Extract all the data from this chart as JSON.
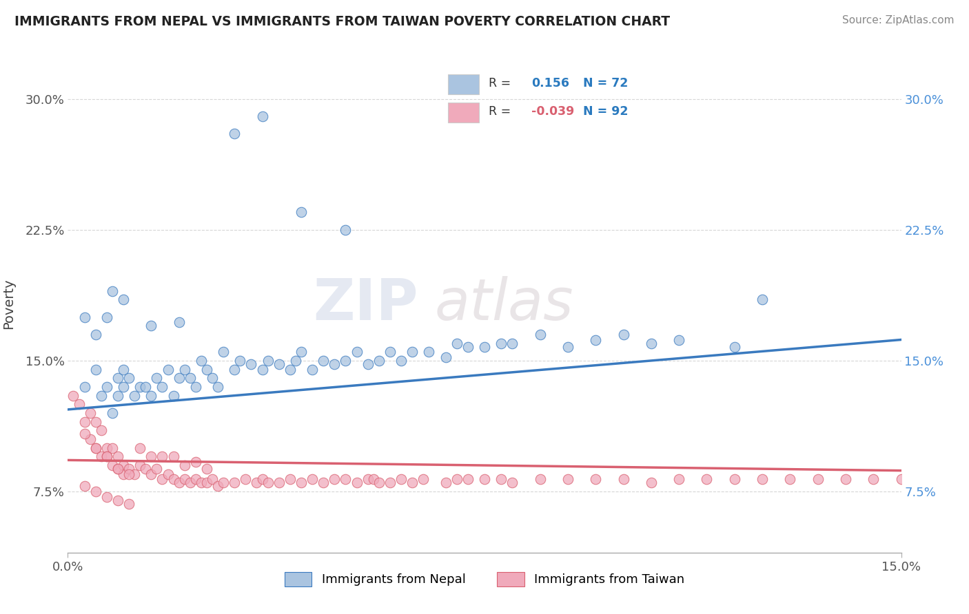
{
  "title": "IMMIGRANTS FROM NEPAL VS IMMIGRANTS FROM TAIWAN POVERTY CORRELATION CHART",
  "source": "Source: ZipAtlas.com",
  "ylabel": "Poverty",
  "x_range": [
    0.0,
    0.15
  ],
  "y_range": [
    0.04,
    0.325
  ],
  "legend_nepal_r": "0.156",
  "legend_nepal_n": "72",
  "legend_taiwan_r": "-0.039",
  "legend_taiwan_n": "92",
  "nepal_color": "#aac4e0",
  "taiwan_color": "#f0aabb",
  "nepal_line_color": "#3a7abf",
  "taiwan_line_color": "#d96070",
  "nepal_line_y0": 0.122,
  "nepal_line_y1": 0.162,
  "taiwan_line_y0": 0.093,
  "taiwan_line_y1": 0.087,
  "y_ticks": [
    0.075,
    0.15,
    0.225,
    0.3
  ],
  "y_tick_labels_left": [
    "7.5%",
    "15.0%",
    "22.5%",
    "30.0%"
  ],
  "y_tick_labels_right": [
    "7.5%",
    "15.0%",
    "22.5%",
    "30.0%"
  ],
  "x_ticks": [
    0.0,
    0.15
  ],
  "x_tick_labels": [
    "0.0%",
    "15.0%"
  ],
  "watermark_text": "ZIP",
  "watermark_text2": "atlas",
  "nepal_x": [
    0.003,
    0.005,
    0.006,
    0.007,
    0.008,
    0.009,
    0.009,
    0.01,
    0.01,
    0.011,
    0.012,
    0.013,
    0.014,
    0.015,
    0.016,
    0.017,
    0.018,
    0.019,
    0.02,
    0.021,
    0.022,
    0.023,
    0.024,
    0.025,
    0.026,
    0.027,
    0.028,
    0.03,
    0.031,
    0.033,
    0.035,
    0.036,
    0.038,
    0.04,
    0.041,
    0.042,
    0.044,
    0.046,
    0.048,
    0.05,
    0.052,
    0.054,
    0.056,
    0.058,
    0.06,
    0.062,
    0.065,
    0.068,
    0.07,
    0.072,
    0.075,
    0.078,
    0.08,
    0.085,
    0.09,
    0.095,
    0.1,
    0.105,
    0.11,
    0.12,
    0.03,
    0.035,
    0.042,
    0.05,
    0.003,
    0.007,
    0.015,
    0.02,
    0.008,
    0.01,
    0.005,
    0.125
  ],
  "nepal_y": [
    0.135,
    0.145,
    0.13,
    0.135,
    0.12,
    0.14,
    0.13,
    0.145,
    0.135,
    0.14,
    0.13,
    0.135,
    0.135,
    0.13,
    0.14,
    0.135,
    0.145,
    0.13,
    0.14,
    0.145,
    0.14,
    0.135,
    0.15,
    0.145,
    0.14,
    0.135,
    0.155,
    0.145,
    0.15,
    0.148,
    0.145,
    0.15,
    0.148,
    0.145,
    0.15,
    0.155,
    0.145,
    0.15,
    0.148,
    0.15,
    0.155,
    0.148,
    0.15,
    0.155,
    0.15,
    0.155,
    0.155,
    0.152,
    0.16,
    0.158,
    0.158,
    0.16,
    0.16,
    0.165,
    0.158,
    0.162,
    0.165,
    0.16,
    0.162,
    0.158,
    0.28,
    0.29,
    0.235,
    0.225,
    0.175,
    0.175,
    0.17,
    0.172,
    0.19,
    0.185,
    0.165,
    0.185
  ],
  "taiwan_x": [
    0.001,
    0.002,
    0.003,
    0.004,
    0.004,
    0.005,
    0.005,
    0.006,
    0.006,
    0.007,
    0.007,
    0.008,
    0.008,
    0.009,
    0.009,
    0.01,
    0.01,
    0.011,
    0.012,
    0.013,
    0.014,
    0.015,
    0.016,
    0.017,
    0.018,
    0.019,
    0.02,
    0.021,
    0.022,
    0.023,
    0.024,
    0.025,
    0.026,
    0.027,
    0.028,
    0.03,
    0.032,
    0.034,
    0.035,
    0.036,
    0.038,
    0.04,
    0.042,
    0.044,
    0.046,
    0.048,
    0.05,
    0.052,
    0.054,
    0.055,
    0.056,
    0.058,
    0.06,
    0.062,
    0.064,
    0.068,
    0.07,
    0.072,
    0.075,
    0.078,
    0.08,
    0.085,
    0.09,
    0.095,
    0.1,
    0.105,
    0.11,
    0.115,
    0.12,
    0.125,
    0.13,
    0.135,
    0.14,
    0.145,
    0.15,
    0.003,
    0.005,
    0.007,
    0.009,
    0.011,
    0.013,
    0.015,
    0.017,
    0.019,
    0.021,
    0.023,
    0.025,
    0.003,
    0.005,
    0.007,
    0.009,
    0.011
  ],
  "taiwan_y": [
    0.13,
    0.125,
    0.115,
    0.12,
    0.105,
    0.115,
    0.1,
    0.11,
    0.095,
    0.1,
    0.095,
    0.1,
    0.09,
    0.095,
    0.088,
    0.09,
    0.085,
    0.088,
    0.085,
    0.09,
    0.088,
    0.085,
    0.088,
    0.082,
    0.085,
    0.082,
    0.08,
    0.082,
    0.08,
    0.082,
    0.08,
    0.08,
    0.082,
    0.078,
    0.08,
    0.08,
    0.082,
    0.08,
    0.082,
    0.08,
    0.08,
    0.082,
    0.08,
    0.082,
    0.08,
    0.082,
    0.082,
    0.08,
    0.082,
    0.082,
    0.08,
    0.08,
    0.082,
    0.08,
    0.082,
    0.08,
    0.082,
    0.082,
    0.082,
    0.082,
    0.08,
    0.082,
    0.082,
    0.082,
    0.082,
    0.08,
    0.082,
    0.082,
    0.082,
    0.082,
    0.082,
    0.082,
    0.082,
    0.082,
    0.082,
    0.108,
    0.1,
    0.095,
    0.088,
    0.085,
    0.1,
    0.095,
    0.095,
    0.095,
    0.09,
    0.092,
    0.088,
    0.078,
    0.075,
    0.072,
    0.07,
    0.068
  ]
}
